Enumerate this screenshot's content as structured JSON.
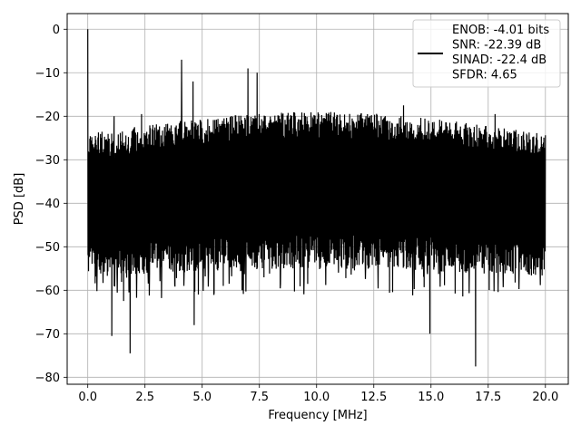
{
  "chart_data": {
    "type": "line",
    "title": "",
    "xlabel": "Frequency [MHz]",
    "ylabel": "PSD [dB]",
    "xlim": [
      -0.9,
      21
    ],
    "ylim": [
      -81.6,
      3.6
    ],
    "x_ticks": [
      0.0,
      2.5,
      5.0,
      7.5,
      10.0,
      12.5,
      15.0,
      17.5,
      20.0
    ],
    "x_tick_labels": [
      "0.0",
      "2.5",
      "5.0",
      "7.5",
      "10.0",
      "12.5",
      "15.0",
      "17.5",
      "20.0"
    ],
    "y_ticks": [
      0,
      -10,
      -20,
      -30,
      -40,
      -50,
      -60,
      -70,
      -80
    ],
    "y_tick_labels": [
      "0",
      "−10",
      "−20",
      "−30",
      "−40",
      "−50",
      "−60",
      "−70",
      "−80"
    ],
    "grid": true,
    "legend": {
      "placement": "top-right",
      "entries": [
        "ENOB: -4.01 bits",
        "SNR: -22.39 dB",
        "SINAD: -22.4 dB",
        "SFDR: 4.65"
      ]
    },
    "series": [
      {
        "color": "#000000",
        "x_range": [
          0.0,
          20.0
        ],
        "noise_floor_upper_db": -21,
        "noise_floor_lower_db": -55,
        "peaks": [
          {
            "x": 0.0,
            "y": 0
          },
          {
            "x": 1.15,
            "y": -20
          },
          {
            "x": 2.35,
            "y": -19.5
          },
          {
            "x": 4.1,
            "y": -7
          },
          {
            "x": 4.6,
            "y": -12
          },
          {
            "x": 7.0,
            "y": -9
          },
          {
            "x": 7.4,
            "y": -10
          },
          {
            "x": 13.8,
            "y": -17.5
          },
          {
            "x": 17.8,
            "y": -19.5
          }
        ],
        "dips": [
          {
            "x": 1.05,
            "y": -70.5
          },
          {
            "x": 1.85,
            "y": -74.5
          },
          {
            "x": 4.65,
            "y": -68
          },
          {
            "x": 14.95,
            "y": -70
          },
          {
            "x": 16.95,
            "y": -77.5
          }
        ]
      }
    ]
  }
}
